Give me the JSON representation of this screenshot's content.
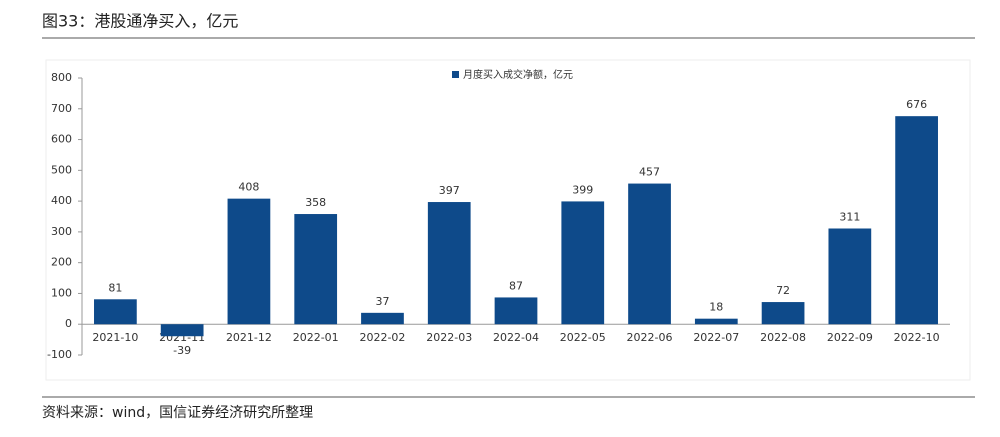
{
  "title": "图33：港股通净买入，亿元",
  "source": "资料来源：wind，国信证券经济研究所整理",
  "chart_data": {
    "type": "bar",
    "categories": [
      "2021-10",
      "2021-11",
      "2021-12",
      "2022-01",
      "2022-02",
      "2022-03",
      "2022-04",
      "2022-05",
      "2022-06",
      "2022-07",
      "2022-08",
      "2022-09",
      "2022-10"
    ],
    "series": [
      {
        "name": "月度买入成交净额，亿元",
        "color": "#0e4a8a",
        "values": [
          81,
          -39,
          408,
          358,
          37,
          397,
          87,
          399,
          457,
          18,
          72,
          311,
          676
        ]
      }
    ],
    "ylim": [
      -100,
      800
    ],
    "yticks": [
      -100,
      0,
      100,
      200,
      300,
      400,
      500,
      600,
      700,
      800
    ],
    "legend": "top"
  }
}
